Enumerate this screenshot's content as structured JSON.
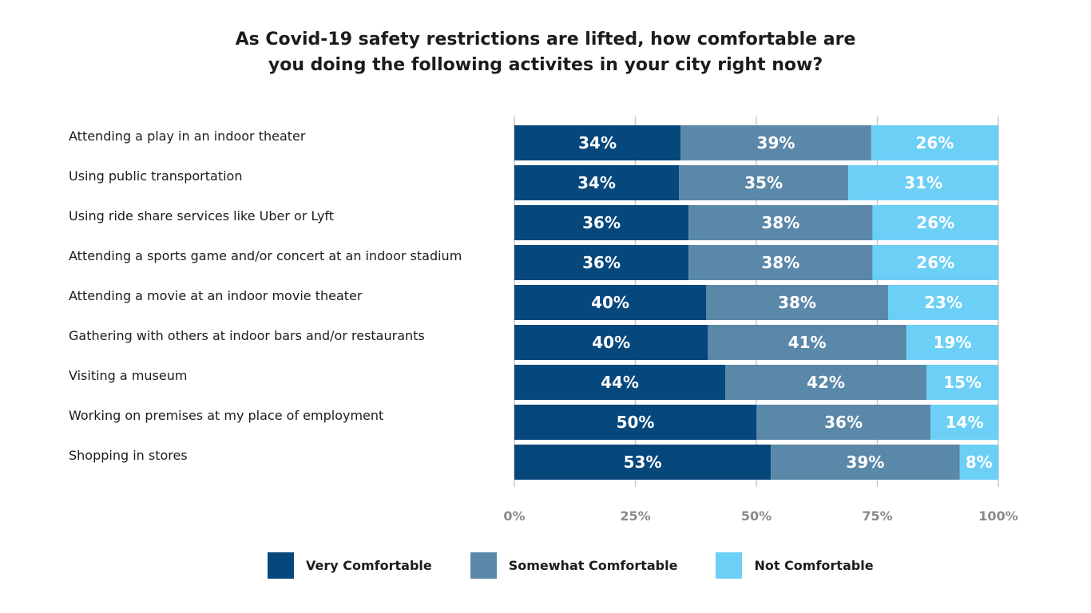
{
  "chart_data": {
    "type": "bar",
    "orientation": "horizontal",
    "stacked": true,
    "title_lines": [
      "As Covid-19 safety restrictions are lifted, how comfortable are",
      "you doing the following activites in your city right now?"
    ],
    "categories": [
      "Attending a play in an indoor theater",
      "Using public transportation",
      "Using ride share services like Uber or Lyft",
      "Attending a sports game and/or concert at an indoor stadium",
      "Attending a movie at an indoor movie theater",
      "Gathering with others at indoor bars and/or restaurants",
      "Visiting a museum",
      "Working on premises at my place of employment",
      "Shopping in stores"
    ],
    "series": [
      {
        "name": "Very Comfortable",
        "color": "#06477c",
        "values": [
          34,
          34,
          36,
          36,
          40,
          40,
          44,
          50,
          53
        ]
      },
      {
        "name": "Somewhat Comfortable",
        "color": "#5a88a8",
        "values": [
          39,
          35,
          38,
          38,
          38,
          41,
          42,
          36,
          39
        ]
      },
      {
        "name": "Not Comfortable",
        "color": "#6ccff6",
        "values": [
          26,
          31,
          26,
          26,
          23,
          19,
          15,
          14,
          8
        ]
      }
    ],
    "xlim": [
      0,
      100
    ],
    "xticks": [
      "0%",
      "25%",
      "50%",
      "75%",
      "100%"
    ],
    "tick_values": [
      0,
      25,
      50,
      75,
      100
    ],
    "value_suffix": "%",
    "grid": true,
    "legend_position": "bottom"
  }
}
